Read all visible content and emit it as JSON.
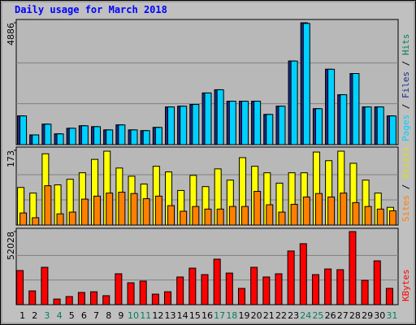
{
  "chart_data": [
    {
      "type": "bar",
      "title": "Daily usage for March 2018",
      "categories": [
        "1",
        "2",
        "3",
        "4",
        "5",
        "6",
        "7",
        "8",
        "9",
        "10",
        "11",
        "12",
        "13",
        "14",
        "15",
        "16",
        "17",
        "18",
        "19",
        "20",
        "21",
        "22",
        "23",
        "24",
        "25",
        "26",
        "27",
        "28",
        "29",
        "30",
        "31"
      ],
      "category_colors": [
        "#000000",
        "#000000",
        "#00805c",
        "#00805c",
        "#000000",
        "#000000",
        "#000000",
        "#000000",
        "#000000",
        "#00805c",
        "#00805c",
        "#000000",
        "#000000",
        "#000000",
        "#000000",
        "#000000",
        "#00805c",
        "#00805c",
        "#000000",
        "#000000",
        "#000000",
        "#000000",
        "#000000",
        "#00805c",
        "#00805c",
        "#000000",
        "#000000",
        "#000000",
        "#000000",
        "#000000",
        "#00805c"
      ],
      "legend_separator": " / ",
      "ylim": [
        0,
        4886
      ],
      "yticks": [
        4886
      ],
      "series": [
        {
          "name": "Hits",
          "color": "#00805c",
          "values": [
            1150,
            390,
            820,
            430,
            655,
            755,
            720,
            590,
            790,
            590,
            560,
            690,
            1510,
            1540,
            1610,
            2070,
            2200,
            1740,
            1740,
            1740,
            1210,
            1540,
            3350,
            4886,
            1440,
            3020,
            2000,
            2850,
            1510,
            1510,
            1150
          ]
        },
        {
          "name": "Files",
          "color": "#1c2c8c",
          "values": [
            1150,
            390,
            820,
            430,
            655,
            755,
            720,
            590,
            790,
            590,
            560,
            690,
            1510,
            1540,
            1610,
            2070,
            2200,
            1740,
            1740,
            1740,
            1210,
            1540,
            3350,
            4886,
            1440,
            3020,
            2000,
            2850,
            1510,
            1510,
            1150
          ]
        },
        {
          "name": "Pages",
          "color": "#00d0ff",
          "values": [
            1150,
            390,
            820,
            430,
            655,
            755,
            720,
            590,
            790,
            590,
            560,
            690,
            1510,
            1540,
            1610,
            2070,
            2200,
            1740,
            1740,
            1740,
            1210,
            1540,
            3350,
            4860,
            1440,
            3020,
            2000,
            2850,
            1510,
            1510,
            1150
          ]
        }
      ]
    },
    {
      "type": "bar",
      "ylim": [
        0,
        173
      ],
      "yticks": [
        173
      ],
      "series": [
        {
          "name": "Visits",
          "color": "#ffff00",
          "values": [
            87,
            74,
            165,
            93,
            106,
            121,
            152,
            171,
            132,
            113,
            95,
            136,
            123,
            80,
            115,
            89,
            130,
            104,
            156,
            136,
            121,
            97,
            121,
            121,
            169,
            149,
            171,
            143,
            104,
            74,
            41
          ]
        },
        {
          "name": "Sites",
          "color": "#ff8000",
          "values": [
            28,
            17,
            91,
            26,
            30,
            60,
            67,
            74,
            76,
            73,
            61,
            67,
            45,
            32,
            43,
            37,
            37,
            43,
            43,
            78,
            47,
            30,
            48,
            65,
            73,
            65,
            74,
            52,
            43,
            37,
            33
          ]
        }
      ]
    },
    {
      "type": "bar",
      "ylim": [
        0,
        52028
      ],
      "yticks": [
        52028
      ],
      "series": [
        {
          "name": "KBytes",
          "color": "#ff0000",
          "values": [
            24300,
            9800,
            26600,
            4000,
            5800,
            8700,
            9200,
            6400,
            22000,
            15600,
            16800,
            7500,
            9200,
            19700,
            26000,
            21400,
            32400,
            22500,
            11600,
            26600,
            19700,
            22000,
            38200,
            43400,
            21400,
            25400,
            24900,
            52028,
            17300,
            31200,
            11600
          ]
        }
      ]
    }
  ]
}
